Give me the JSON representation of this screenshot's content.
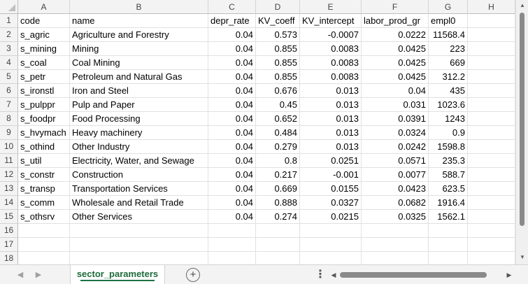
{
  "sheet": {
    "columns": [
      "A",
      "B",
      "C",
      "D",
      "E",
      "F",
      "G",
      "H"
    ],
    "rows": [
      [
        "code",
        "name",
        "depr_rate",
        "KV_coeff",
        "KV_intercept",
        "labor_prod_gr",
        "empl0",
        ""
      ],
      [
        "s_agric",
        "Agriculture and Forestry",
        "0.04",
        "0.573",
        "-0.0007",
        "0.0222",
        "11568.4",
        ""
      ],
      [
        "s_mining",
        "Mining",
        "0.04",
        "0.855",
        "0.0083",
        "0.0425",
        "223",
        ""
      ],
      [
        "s_coal",
        "Coal Mining",
        "0.04",
        "0.855",
        "0.0083",
        "0.0425",
        "669",
        ""
      ],
      [
        "s_petr",
        "Petroleum and Natural Gas",
        "0.04",
        "0.855",
        "0.0083",
        "0.0425",
        "312.2",
        ""
      ],
      [
        "s_ironstl",
        "Iron and Steel",
        "0.04",
        "0.676",
        "0.013",
        "0.04",
        "435",
        ""
      ],
      [
        "s_pulppr",
        "Pulp and Paper",
        "0.04",
        "0.45",
        "0.013",
        "0.031",
        "1023.6",
        ""
      ],
      [
        "s_foodpr",
        "Food Processing",
        "0.04",
        "0.652",
        "0.013",
        "0.0391",
        "1243",
        ""
      ],
      [
        "s_hvymach",
        "Heavy machinery",
        "0.04",
        "0.484",
        "0.013",
        "0.0324",
        "0.9",
        ""
      ],
      [
        "s_othind",
        "Other Industry",
        "0.04",
        "0.279",
        "0.013",
        "0.0242",
        "1598.8",
        ""
      ],
      [
        "s_util",
        "Electricity, Water, and Sewage",
        "0.04",
        "0.8",
        "0.0251",
        "0.0571",
        "235.3",
        ""
      ],
      [
        "s_constr",
        "Construction",
        "0.04",
        "0.217",
        "-0.001",
        "0.0077",
        "588.7",
        ""
      ],
      [
        "s_transp",
        "Transportation Services",
        "0.04",
        "0.669",
        "0.0155",
        "0.0423",
        "623.5",
        ""
      ],
      [
        "s_comm",
        "Wholesale and Retail Trade",
        "0.04",
        "0.888",
        "0.0327",
        "0.0682",
        "1916.4",
        ""
      ],
      [
        "s_othsrv",
        "Other Services",
        "0.04",
        "0.274",
        "0.0215",
        "0.0325",
        "1562.1",
        ""
      ],
      [
        "",
        "",
        "",
        "",
        "",
        "",
        "",
        ""
      ],
      [
        "",
        "",
        "",
        "",
        "",
        "",
        "",
        ""
      ],
      [
        "",
        "",
        "",
        "",
        "",
        "",
        "",
        ""
      ]
    ]
  },
  "tabs": [
    {
      "label": "sector_parameters",
      "active": true
    }
  ],
  "icons": {
    "select_all": "select-all-triangle-icon",
    "prev_sheet": "chevron-left-icon",
    "next_sheet": "chevron-right-icon",
    "add_sheet": "plus-circle-icon",
    "more": "vertical-ellipsis-icon"
  },
  "colors": {
    "active_tab_text": "#1e6b3a",
    "active_tab_underline": "#1e7145",
    "header_bg": "#f3f3f3",
    "gridline": "#e1e1e1"
  }
}
